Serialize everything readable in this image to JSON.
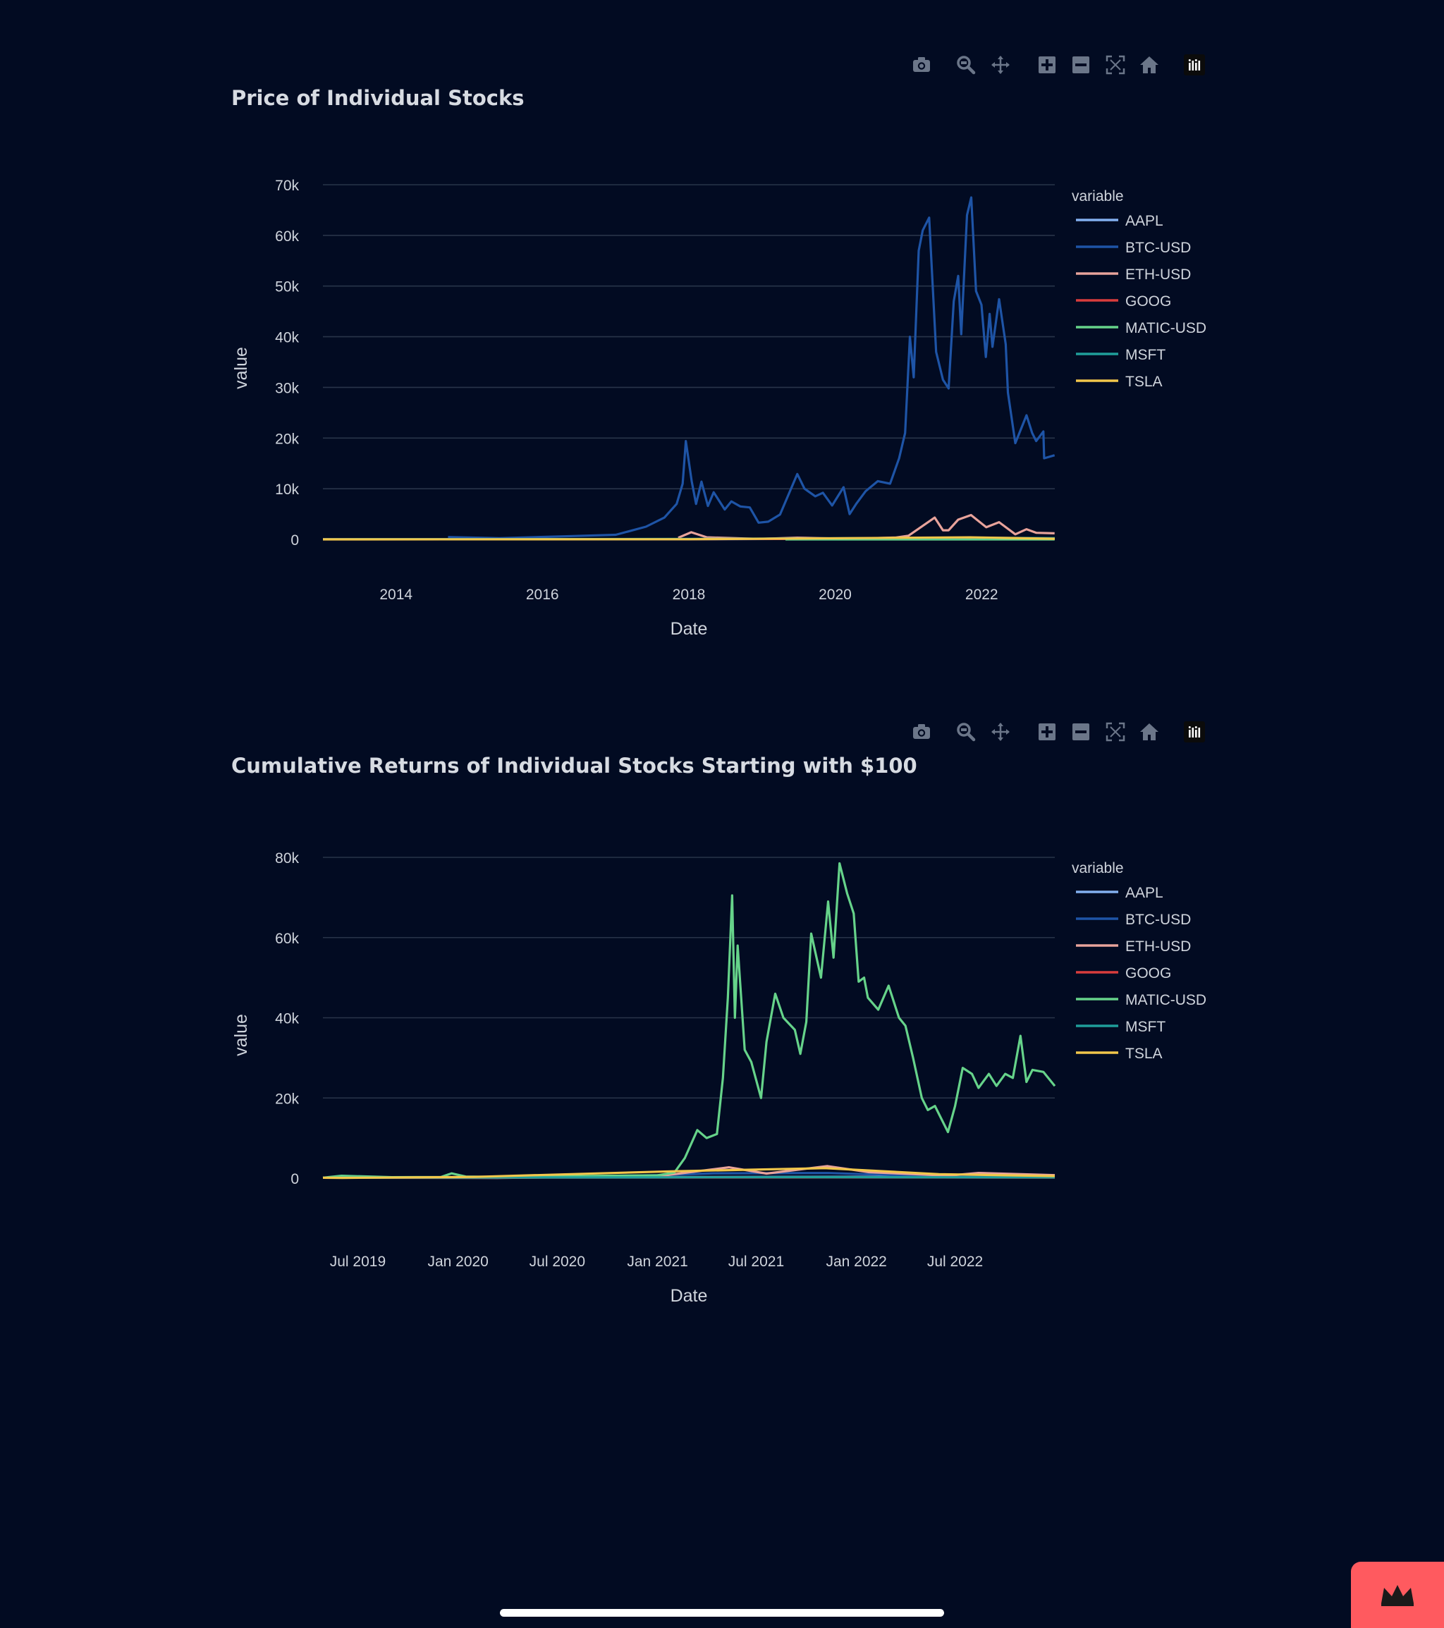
{
  "theme": {
    "background": "#020b22",
    "grid": "#283449",
    "text": "#cfd4dc",
    "icon": "#6b7689",
    "badge": "#ff5a5f"
  },
  "modebar_icons": [
    "camera-icon",
    "zoom-icon",
    "pan-icon",
    "zoom-in-icon",
    "zoom-out-icon",
    "autoscale-icon",
    "home-icon",
    "plotly-logo-icon"
  ],
  "charts": [
    {
      "title": "Price of Individual Stocks",
      "legend_title": "variable",
      "xlabel": "Date",
      "ylabel": "value"
    },
    {
      "title": "Cumulative Returns of Individual Stocks Starting with $100",
      "legend_title": "variable",
      "xlabel": "Date",
      "ylabel": "value"
    }
  ],
  "chart_data": [
    {
      "type": "line",
      "title": "Price of Individual Stocks",
      "xlabel": "Date",
      "ylabel": "value",
      "xlim": [
        "2013-01-01",
        "2023-01-01"
      ],
      "ylim": [
        0,
        70000
      ],
      "x_ticks": [
        2014,
        2016,
        2018,
        2020,
        2022
      ],
      "x_tick_labels": [
        "2014",
        "2016",
        "2018",
        "2020",
        "2022"
      ],
      "y_ticks": [
        0,
        10000,
        20000,
        30000,
        40000,
        50000,
        60000,
        70000
      ],
      "y_tick_labels": [
        "0",
        "10k",
        "20k",
        "30k",
        "40k",
        "50k",
        "60k",
        "70k"
      ],
      "grid": true,
      "legend_position": "right",
      "series": [
        {
          "name": "AAPL",
          "color": "#83b0f0",
          "x": [
            "2013-01-01",
            "2018-01-01",
            "2021-01-01",
            "2023-01-01"
          ],
          "values": [
            18,
            43,
            133,
            130
          ]
        },
        {
          "name": "BTC-USD",
          "color": "#1e54a6",
          "x": [
            "2014-09-17",
            "2015-06-01",
            "2016-06-01",
            "2017-01-01",
            "2017-06-01",
            "2017-09-01",
            "2017-11-01",
            "2017-12-01",
            "2017-12-17",
            "2018-01-15",
            "2018-02-06",
            "2018-03-05",
            "2018-04-06",
            "2018-05-05",
            "2018-06-29",
            "2018-08-01",
            "2018-09-15",
            "2018-11-01",
            "2018-12-15",
            "2019-02-01",
            "2019-04-01",
            "2019-06-26",
            "2019-08-01",
            "2019-09-24",
            "2019-11-01",
            "2019-12-17",
            "2020-02-12",
            "2020-03-13",
            "2020-04-15",
            "2020-06-01",
            "2020-08-01",
            "2020-10-01",
            "2020-11-15",
            "2020-12-15",
            "2021-01-08",
            "2021-01-27",
            "2021-02-21",
            "2021-03-13",
            "2021-04-14",
            "2021-05-19",
            "2021-06-22",
            "2021-07-20",
            "2021-08-15",
            "2021-09-06",
            "2021-09-21",
            "2021-10-20",
            "2021-11-10",
            "2021-12-04",
            "2021-12-31",
            "2022-01-22",
            "2022-02-10",
            "2022-02-24",
            "2022-03-29",
            "2022-05-01",
            "2022-05-12",
            "2022-06-18",
            "2022-08-13",
            "2022-09-10",
            "2022-09-30",
            "2022-11-05",
            "2022-11-09",
            "2022-12-31"
          ],
          "values": [
            460,
            230,
            650,
            900,
            2500,
            4300,
            7000,
            11000,
            19400,
            11500,
            7000,
            11400,
            6600,
            9300,
            5900,
            7500,
            6500,
            6300,
            3300,
            3500,
            4900,
            12900,
            10000,
            8500,
            9200,
            6700,
            10300,
            5000,
            7000,
            9500,
            11500,
            11000,
            16000,
            21000,
            40000,
            32000,
            57000,
            61000,
            63500,
            37000,
            31500,
            29800,
            47000,
            52000,
            40500,
            64000,
            67500,
            49000,
            46300,
            36000,
            44500,
            38000,
            47400,
            38500,
            29000,
            19000,
            24500,
            21000,
            19400,
            21300,
            16000,
            16600
          ]
        },
        {
          "name": "ETH-USD",
          "color": "#e8a39b",
          "x": [
            "2017-11-09",
            "2018-01-13",
            "2018-04-01",
            "2018-12-15",
            "2019-06-26",
            "2020-03-13",
            "2020-11-01",
            "2021-01-01",
            "2021-05-12",
            "2021-06-22",
            "2021-07-20",
            "2021-09-06",
            "2021-11-09",
            "2022-01-24",
            "2022-03-29",
            "2022-06-18",
            "2022-08-13",
            "2022-10-01",
            "2022-12-31"
          ],
          "values": [
            320,
            1400,
            400,
            84,
            330,
            110,
            380,
            730,
            4300,
            1800,
            1800,
            3900,
            4800,
            2400,
            3400,
            1000,
            2000,
            1300,
            1200
          ]
        },
        {
          "name": "GOOG",
          "color": "#d93c3c",
          "x": [
            "2013-01-01",
            "2018-01-01",
            "2021-11-01",
            "2023-01-01"
          ],
          "values": [
            18,
            55,
            150,
            88
          ]
        },
        {
          "name": "MATIC-USD",
          "color": "#66d38a",
          "x": [
            "2019-04-28",
            "2021-02-01",
            "2021-05-18",
            "2021-12-27",
            "2022-06-18",
            "2022-12-31"
          ],
          "values": [
            0.004,
            0.1,
            2.5,
            2.9,
            0.4,
            0.8
          ]
        },
        {
          "name": "MSFT",
          "color": "#1f9e9a",
          "x": [
            "2013-01-01",
            "2018-01-01",
            "2021-11-01",
            "2023-01-01"
          ],
          "values": [
            27,
            90,
            340,
            240
          ]
        },
        {
          "name": "TSLA",
          "color": "#f2c74b",
          "x": [
            "2013-01-01",
            "2018-01-01",
            "2021-11-04",
            "2023-01-01"
          ],
          "values": [
            2,
            21,
            410,
            123
          ]
        }
      ]
    },
    {
      "type": "line",
      "title": "Cumulative Returns of Individual Stocks Starting with $100",
      "xlabel": "Date",
      "ylabel": "value",
      "xlim": [
        "2019-04-28",
        "2022-12-31"
      ],
      "ylim": [
        0,
        80000
      ],
      "x_ticks": [
        "2019-07-01",
        "2020-01-01",
        "2020-07-01",
        "2021-01-01",
        "2021-07-01",
        "2022-01-01",
        "2022-07-01"
      ],
      "x_tick_labels": [
        "Jul 2019",
        "Jan 2020",
        "Jul 2020",
        "Jan 2021",
        "Jul 2021",
        "Jan 2022",
        "Jul 2022"
      ],
      "y_ticks": [
        0,
        20000,
        40000,
        60000,
        80000
      ],
      "y_tick_labels": [
        "0",
        "20k",
        "40k",
        "60k",
        "80k"
      ],
      "grid": true,
      "legend_position": "right",
      "series": [
        {
          "name": "AAPL",
          "color": "#83b0f0",
          "x": [
            "2019-04-28",
            "2021-01-01",
            "2022-01-01",
            "2022-12-31"
          ],
          "values": [
            100,
            260,
            350,
            250
          ]
        },
        {
          "name": "BTC-USD",
          "color": "#1e54a6",
          "x": [
            "2019-04-28",
            "2019-06-26",
            "2020-03-13",
            "2021-01-08",
            "2021-04-14",
            "2021-11-10",
            "2022-06-18",
            "2022-12-31"
          ],
          "values": [
            100,
            245,
            95,
            770,
            1210,
            1280,
            360,
            315
          ]
        },
        {
          "name": "ETH-USD",
          "color": "#e8a39b",
          "x": [
            "2019-04-28",
            "2020-03-13",
            "2021-01-01",
            "2021-05-12",
            "2021-07-20",
            "2021-11-09",
            "2022-01-24",
            "2022-06-18",
            "2022-08-13",
            "2022-12-31"
          ],
          "values": [
            100,
            70,
            470,
            2700,
            1150,
            3000,
            1500,
            640,
            1300,
            760
          ]
        },
        {
          "name": "GOOG",
          "color": "#d93c3c",
          "x": [
            "2019-04-28",
            "2021-11-01",
            "2022-12-31"
          ],
          "values": [
            100,
            230,
            150
          ]
        },
        {
          "name": "MATIC-USD",
          "color": "#66d38a",
          "x": [
            "2019-04-28",
            "2019-06-01",
            "2019-09-01",
            "2019-12-01",
            "2019-12-20",
            "2020-01-15",
            "2020-04-01",
            "2020-07-01",
            "2020-10-01",
            "2021-01-01",
            "2021-02-01",
            "2021-02-20",
            "2021-03-15",
            "2021-04-01",
            "2021-04-20",
            "2021-05-01",
            "2021-05-10",
            "2021-05-18",
            "2021-05-23",
            "2021-05-28",
            "2021-06-10",
            "2021-06-22",
            "2021-07-10",
            "2021-07-20",
            "2021-08-05",
            "2021-08-20",
            "2021-09-10",
            "2021-09-20",
            "2021-10-01",
            "2021-10-10",
            "2021-10-28",
            "2021-11-10",
            "2021-11-20",
            "2021-12-01",
            "2021-12-15",
            "2021-12-27",
            "2022-01-05",
            "2022-01-15",
            "2022-01-22",
            "2022-02-10",
            "2022-03-01",
            "2022-03-20",
            "2022-04-01",
            "2022-04-15",
            "2022-05-01",
            "2022-05-12",
            "2022-05-25",
            "2022-06-18",
            "2022-07-01",
            "2022-07-15",
            "2022-08-01",
            "2022-08-13",
            "2022-09-01",
            "2022-09-15",
            "2022-10-01",
            "2022-10-15",
            "2022-10-29",
            "2022-11-09",
            "2022-11-20",
            "2022-12-10",
            "2022-12-31"
          ],
          "values": [
            100,
            600,
            250,
            300,
            1200,
            400,
            300,
            500,
            600,
            700,
            1400,
            5000,
            12000,
            10000,
            11000,
            25000,
            45000,
            70500,
            40000,
            58000,
            32000,
            29000,
            20000,
            34000,
            46000,
            40000,
            37000,
            31000,
            39000,
            61000,
            50000,
            69000,
            55000,
            78500,
            71000,
            66000,
            49000,
            50000,
            45000,
            42000,
            48000,
            40000,
            38000,
            30000,
            20000,
            17000,
            18000,
            11500,
            18000,
            27500,
            26000,
            22500,
            26000,
            23000,
            26000,
            25000,
            35500,
            24000,
            27000,
            26500,
            23000
          ]
        },
        {
          "name": "MSFT",
          "color": "#1f9e9a",
          "x": [
            "2019-04-28",
            "2021-11-01",
            "2022-12-31"
          ],
          "values": [
            100,
            260,
            185
          ]
        },
        {
          "name": "TSLA",
          "color": "#f2c74b",
          "x": [
            "2019-04-28",
            "2019-06-03",
            "2020-02-01",
            "2021-01-26",
            "2021-11-04",
            "2022-06-01",
            "2022-12-31"
          ],
          "values": [
            100,
            70,
            320,
            1700,
            2500,
            1000,
            520
          ]
        }
      ]
    }
  ]
}
